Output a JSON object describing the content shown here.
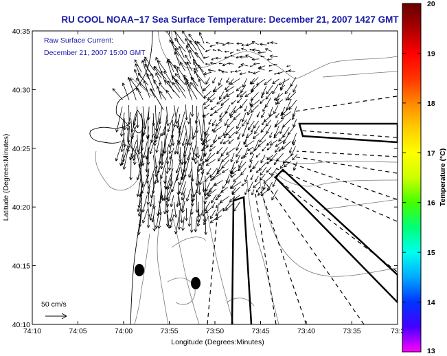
{
  "title": "RU COOL  NOAA−17  Sea Surface Temperature:  December 21, 2007 1427 GMT",
  "overlay": {
    "line1": "Raw Surface Current:",
    "line2": "December 21, 2007 15:00 GMT"
  },
  "scale_label": "50 cm/s",
  "axes": {
    "xlabel": "Longitude (Degrees:Minutes)",
    "ylabel": "Latitude (Degrees:Minutes)",
    "xticks": [
      "74:10",
      "74:05",
      "74:00",
      "73:55",
      "73:50",
      "73:45",
      "73:40",
      "73:35",
      "73:3"
    ],
    "yticks": [
      "40:35",
      "40:30",
      "40:25",
      "40:20",
      "40:15",
      "40:10"
    ]
  },
  "colorbar": {
    "label": "Temperature (°C)",
    "ticks": [
      "20",
      "19",
      "18",
      "17",
      "16",
      "15",
      "14",
      "13"
    ],
    "range": [
      13,
      20
    ],
    "colors": [
      "#ff00ff",
      "#4400ff",
      "#0033ff",
      "#00aaff",
      "#00ffee",
      "#00ff77",
      "#44ff00",
      "#ccff00",
      "#ffff00",
      "#ffcc00",
      "#ff8800",
      "#ff3300",
      "#ff0000",
      "#aa0000",
      "#660000"
    ]
  },
  "colors": {
    "title": "#1a1aa8",
    "contour": "#777777",
    "coastline": "#000000"
  }
}
